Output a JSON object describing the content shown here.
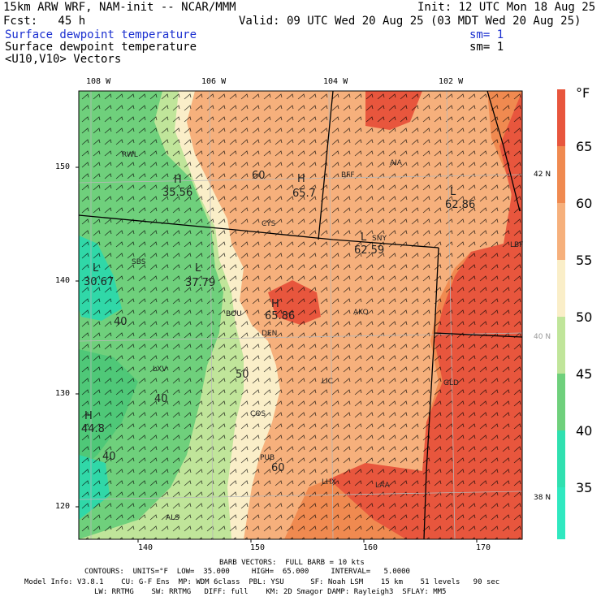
{
  "header": {
    "title_left": "15km ARW WRF, NAM-init -- NCAR/MMM",
    "init": "Init: 12 UTC Mon 18 Aug 25",
    "fcst": "Fcst:   45 h",
    "valid": "Valid: 09 UTC Wed 20 Aug 25 (03 MDT Wed 20 Aug 25)",
    "field1": "Surface dewpoint temperature",
    "field1_sm": "sm= 1",
    "field2": "Surface dewpoint temperature",
    "field2_sm": "sm= 1",
    "field3": "<U10,V10> Vectors"
  },
  "map": {
    "lon_labels": [
      "108 W",
      "106 W",
      "104 W",
      "102 W"
    ],
    "lat_labels": [
      "42 N",
      "40 N",
      "38 N"
    ],
    "y_ticks": [
      "150",
      "140",
      "130",
      "120"
    ],
    "x_ticks": [
      "140",
      "150",
      "160",
      "170"
    ],
    "stations": [
      "RWL",
      "BFF",
      "AIA",
      "CYS",
      "SNY",
      "LBF",
      "SBS",
      "BOU",
      "AKO",
      "DEN",
      "LXV",
      "LIC",
      "GLD",
      "COS",
      "PUB",
      "LHX",
      "LAA",
      "ALS"
    ],
    "extrema": [
      {
        "letter": "H",
        "value": "35.56"
      },
      {
        "letter": "H",
        "value": "65.7"
      },
      {
        "letter": "L",
        "value": "62.86"
      },
      {
        "letter": "L",
        "value": "62.59"
      },
      {
        "letter": "L",
        "value": "30.67"
      },
      {
        "letter": "L",
        "value": "37.79"
      },
      {
        "letter": "H",
        "value": "65.86"
      },
      {
        "letter": "H",
        "value": "44.8"
      }
    ],
    "contour_labels": [
      "60",
      "40",
      "50",
      "40",
      "60",
      "40"
    ]
  },
  "colorbar": {
    "unit": "°F",
    "labels": [
      "65",
      "60",
      "55",
      "50",
      "45",
      "40",
      "35"
    ],
    "colors": [
      "#e8563d",
      "#f08a50",
      "#f6b07c",
      "#faeec8",
      "#c0e59a",
      "#6fd07c",
      "#30e0b0"
    ]
  },
  "footer": {
    "barb": "BARB VECTORS:  FULL BARB = 10 kts",
    "contours": "CONTOURS:  UNITS=°F  LOW=  35.000     HIGH=  65.000     INTERVAL=   5.0000",
    "model1": "Model Info: V3.8.1    CU: G-F Ens  MP: WDM 6class  PBL: YSU      SF: Noah LSM    15 km    51 levels   90 sec",
    "model2": "LW: RRTMG    SW: RRTMG   DIFF: full    KM: 2D Smagor DAMP: Rayleigh3  SFLAY: MM5"
  }
}
